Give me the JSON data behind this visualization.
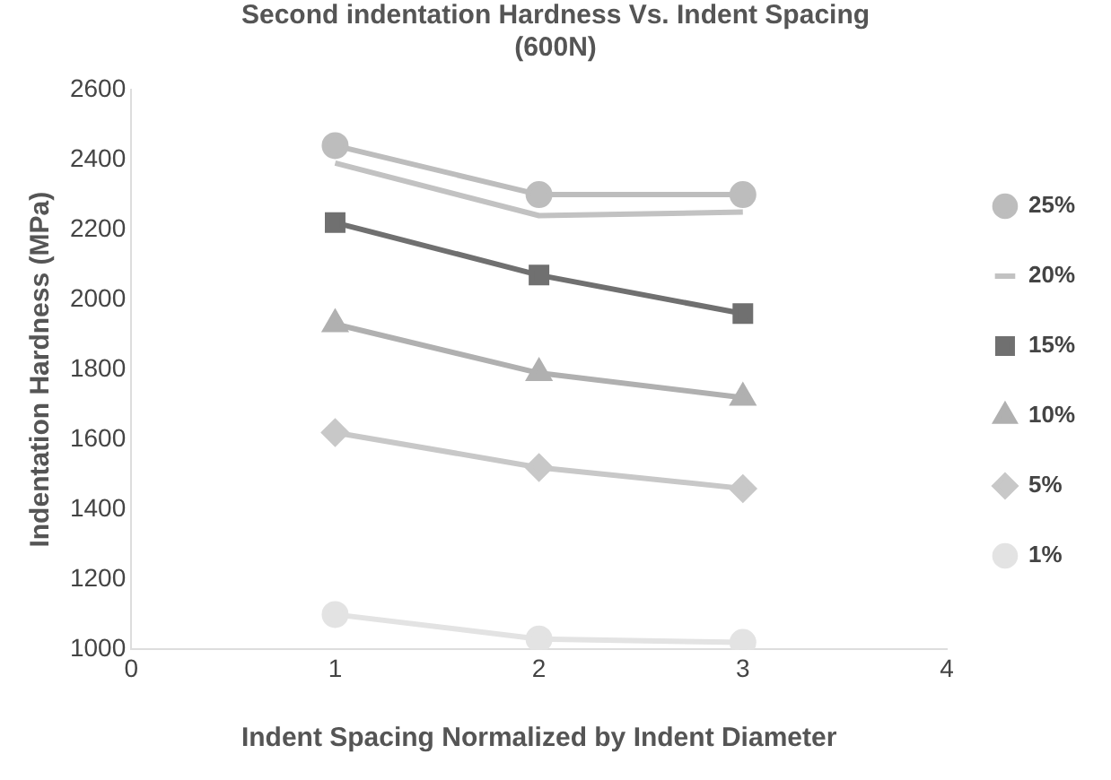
{
  "chart_data": {
    "type": "line",
    "title": [
      "Second indentation Hardness Vs. Indent Spacing",
      "(600N)"
    ],
    "xlabel": "Indent Spacing Normalized by Indent Diameter",
    "ylabel": "Indentation Hardness (MPa)",
    "x": [
      1,
      2,
      3
    ],
    "xlim": [
      0,
      4
    ],
    "xticks": [
      0,
      1,
      2,
      3,
      4
    ],
    "ylim": [
      1000,
      2600
    ],
    "yticks": [
      1000,
      1200,
      1400,
      1600,
      1800,
      2000,
      2200,
      2400,
      2600
    ],
    "grid": false,
    "legend": "right",
    "series": [
      {
        "name": "25%",
        "color": "#bdbdbd",
        "marker": "circle",
        "values": [
          2440,
          2300,
          2300
        ]
      },
      {
        "name": "20%",
        "color": "#c2c2c2",
        "marker": "none",
        "values": [
          2390,
          2240,
          2250
        ]
      },
      {
        "name": "15%",
        "color": "#707070",
        "marker": "square",
        "values": [
          2220,
          2070,
          1960
        ]
      },
      {
        "name": "10%",
        "color": "#b0b0b0",
        "marker": "triangle",
        "values": [
          1930,
          1790,
          1720
        ]
      },
      {
        "name": "5%",
        "color": "#c8c8c8",
        "marker": "diamond",
        "values": [
          1620,
          1520,
          1460
        ]
      },
      {
        "name": "1%",
        "color": "#e3e3e3",
        "marker": "circle",
        "values": [
          1100,
          1030,
          1020
        ]
      }
    ]
  }
}
